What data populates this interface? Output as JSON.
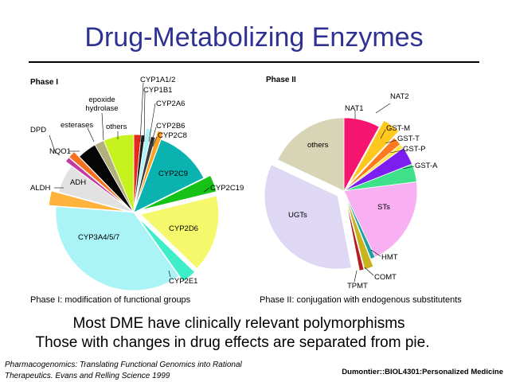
{
  "slide": {
    "title": "Drug-Metabolizing Enzymes",
    "line1": "Most DME have clinically relevant polymorphisms",
    "line2": "Those with changes in drug effects are separated from pie.",
    "reference_line1": "Pharmacogenomics: Translating Functional Genomics into Rational",
    "reference_line2": "Therapeutics. Evans and Relling Science 1999",
    "course": "Dumontier::BIOL4301:Personalized Medicine"
  },
  "chart_data": [
    {
      "type": "pie",
      "title": "Phase I",
      "caption": "Phase I: modification of functional groups",
      "slices": [
        {
          "label": "CYP1A1/2",
          "value": 1.5,
          "color": "#e8271e",
          "exploded": false
        },
        {
          "label": "CYP1B1",
          "value": 0.8,
          "color": "#1c1c1c",
          "exploded": false
        },
        {
          "label": "CYP2A6",
          "value": 1.2,
          "color": "#aaf3f6",
          "exploded": true
        },
        {
          "label": "CYP2B6",
          "value": 1.0,
          "color": "#3c3c3c",
          "exploded": false
        },
        {
          "label": "CYP2C8",
          "value": 1.2,
          "color": "#ffa21e",
          "exploded": true
        },
        {
          "label": "CYP2C9",
          "value": 12.0,
          "color": "#0bb3b0",
          "exploded": false
        },
        {
          "label": "CYP2C19",
          "value": 3.5,
          "color": "#16c216",
          "exploded": true
        },
        {
          "label": "CYP2D6",
          "value": 16.0,
          "color": "#f5f86a",
          "exploded": true
        },
        {
          "label": "CYP2E1",
          "value": 3.0,
          "color": "#3eeec8",
          "exploded": true
        },
        {
          "label": "CYP3A4/5/7",
          "value": 36.0,
          "color": "#aaf3f6",
          "exploded": false
        },
        {
          "label": "ALDH",
          "value": 3.0,
          "color": "#ffb23c",
          "exploded": true
        },
        {
          "label": "ADH",
          "value": 6.0,
          "color": "#e2e2e2",
          "exploded": false
        },
        {
          "label": "DPD",
          "value": 1.0,
          "color": "#c53aa0",
          "exploded": true
        },
        {
          "label": "NQO1",
          "value": 1.5,
          "color": "#f5711e",
          "exploded": true
        },
        {
          "label": "esterases",
          "value": 4.0,
          "color": "#050505",
          "exploded": false
        },
        {
          "label": "epoxide hydrolase",
          "value": 2.0,
          "color": "#b3b07e",
          "exploded": false
        },
        {
          "label": "others",
          "value": 6.3,
          "color": "#c6f21e",
          "exploded": false
        }
      ]
    },
    {
      "type": "pie",
      "title": "Phase II",
      "caption": "Phase II: conjugation with endogenous substitutents",
      "slices": [
        {
          "label": "NAT1",
          "value": 8.0,
          "color": "#f5146e",
          "exploded": false
        },
        {
          "label": "NAT2",
          "value": 4.0,
          "color": "#ffc81e",
          "exploded": true
        },
        {
          "label": "GST-M",
          "value": 2.0,
          "color": "#ff7a1e",
          "exploded": false
        },
        {
          "label": "GST-T",
          "value": 1.0,
          "color": "#ffe84a",
          "exploded": false
        },
        {
          "label": "GST-P",
          "value": 4.0,
          "color": "#7d1ef0",
          "exploded": false
        },
        {
          "label": "GST-A",
          "value": 4.0,
          "color": "#3ee08a",
          "exploded": false
        },
        {
          "label": "STs",
          "value": 20.0,
          "color": "#f8b0f2",
          "exploded": false
        },
        {
          "label": "HMT",
          "value": 1.0,
          "color": "#1ea0a0",
          "exploded": false
        },
        {
          "label": "COMT",
          "value": 2.0,
          "color": "#c8b41e",
          "exploded": true
        },
        {
          "label": "TPMT",
          "value": 1.0,
          "color": "#b41e1e",
          "exploded": true
        },
        {
          "label": "UGTs",
          "value": 35.0,
          "color": "#ded8f4",
          "exploded": true
        },
        {
          "label": "others",
          "value": 18.0,
          "color": "#d8d4b6",
          "exploded": false
        }
      ]
    }
  ]
}
